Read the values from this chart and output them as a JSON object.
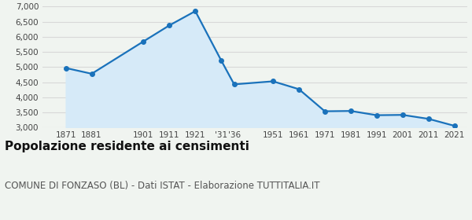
{
  "years": [
    1871,
    1881,
    1901,
    1911,
    1921,
    1931,
    1936,
    1951,
    1961,
    1971,
    1981,
    1991,
    2001,
    2011,
    2021
  ],
  "population": [
    4970,
    4780,
    5850,
    6380,
    6850,
    5220,
    4430,
    4530,
    4270,
    3540,
    3550,
    3410,
    3420,
    3290,
    3060
  ],
  "x_labels": [
    "1871",
    "1881",
    "1901",
    "1911",
    "1921",
    "'31",
    "'36",
    "1951",
    "1961",
    "1971",
    "1981",
    "1991",
    "2001",
    "2011",
    "2021"
  ],
  "ylim": [
    3000,
    7000
  ],
  "yticks": [
    3000,
    3500,
    4000,
    4500,
    5000,
    5500,
    6000,
    6500,
    7000
  ],
  "line_color": "#1a72bb",
  "fill_color": "#d6eaf8",
  "marker_color": "#1a72bb",
  "bg_color": "#f0f4f0",
  "grid_color": "#d8d8d8",
  "title": "Popolazione residente ai censimenti",
  "subtitle": "COMUNE DI FONZASO (BL) - Dati ISTAT - Elaborazione TUTTITALIA.IT",
  "title_fontsize": 11,
  "subtitle_fontsize": 8.5,
  "tick_fontsize": 7.5,
  "xlim_left": 1862,
  "xlim_right": 2026
}
